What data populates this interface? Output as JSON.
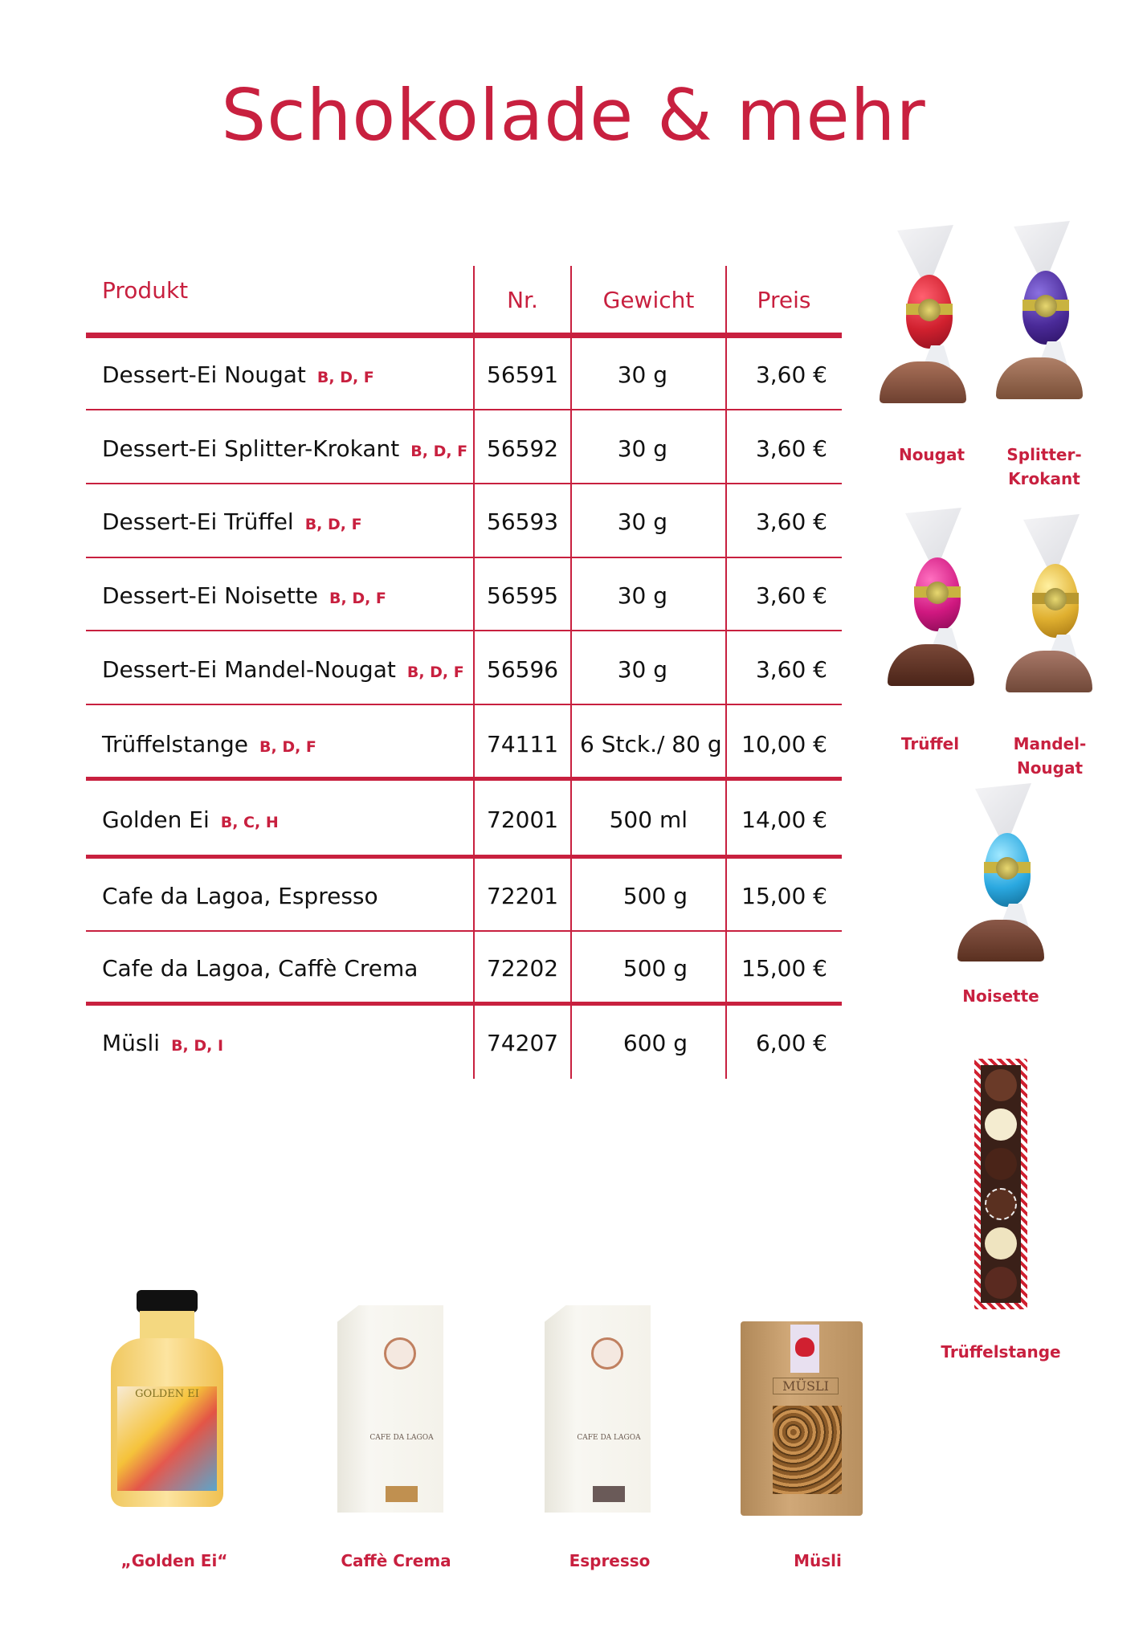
{
  "title": "Schokolade & mehr",
  "colors": {
    "accent": "#c8203f",
    "text": "#111111"
  },
  "table": {
    "headers": {
      "product": "Produkt",
      "nr": "Nr.",
      "weight": "Gewicht",
      "price": "Preis"
    },
    "rows": [
      {
        "product": "Dessert-Ei Nougat",
        "allergens": "B, D, F",
        "nr": "56591",
        "weight": "30 g",
        "price": "3,60 €"
      },
      {
        "product": "Dessert-Ei Splitter-Krokant",
        "allergens": "B, D, F",
        "nr": "56592",
        "weight": "30 g",
        "price": "3,60 €"
      },
      {
        "product": "Dessert-Ei Trüffel",
        "allergens": "B, D, F",
        "nr": "56593",
        "weight": "30 g",
        "price": "3,60 €"
      },
      {
        "product": "Dessert-Ei Noisette",
        "allergens": "B, D, F",
        "nr": "56595",
        "weight": "30 g",
        "price": "3,60 €"
      },
      {
        "product": "Dessert-Ei Mandel-Nougat",
        "allergens": "B, D, F",
        "nr": "56596",
        "weight": "30 g",
        "price": "3,60 €"
      },
      {
        "product": "Trüffelstange",
        "allergens": "B, D, F",
        "nr": "74111",
        "weight": "6 Stck./ 80 g",
        "price": "10,00 €"
      },
      {
        "product": "Golden Ei",
        "allergens": "B, C, H",
        "nr": "72001",
        "weight": "500 ml",
        "price": "14,00 €"
      },
      {
        "product": "Cafe da Lagoa, Espresso",
        "allergens": "",
        "nr": "72201",
        "weight": "500 g",
        "price": "15,00 €"
      },
      {
        "product": "Cafe da Lagoa, Caffè Crema",
        "allergens": "",
        "nr": "72202",
        "weight": "500 g",
        "price": "15,00 €"
      },
      {
        "product": "Müsli",
        "allergens": "B, D, I",
        "nr": "74207",
        "weight": "600 g",
        "price": "6,00 €"
      }
    ]
  },
  "side_images": [
    {
      "label": "Nougat",
      "foil": "#d0202e"
    },
    {
      "label": "Splitter-Krokant",
      "label_lines": [
        "Splitter-",
        "Krokant"
      ],
      "foil": "#4a2a98"
    },
    {
      "label": "Trüffel",
      "foil": "#d01880"
    },
    {
      "label": "Mandel-Nougat",
      "label_lines": [
        "Mandel-",
        "Nougat"
      ],
      "foil": "#e0b030"
    },
    {
      "label": "Noisette",
      "foil": "#2aa8e0"
    },
    {
      "label": "Trüffelstange"
    }
  ],
  "bottom_images": [
    {
      "label": "„Golden Ei“",
      "package_text": "GOLDEN EI"
    },
    {
      "label": "Caffè  Crema",
      "package_text": "CAFE DA LAGOA"
    },
    {
      "label": "Espresso",
      "package_text": "CAFE DA LAGOA"
    },
    {
      "label": "Müsli",
      "package_text": "MÜSLI"
    }
  ]
}
